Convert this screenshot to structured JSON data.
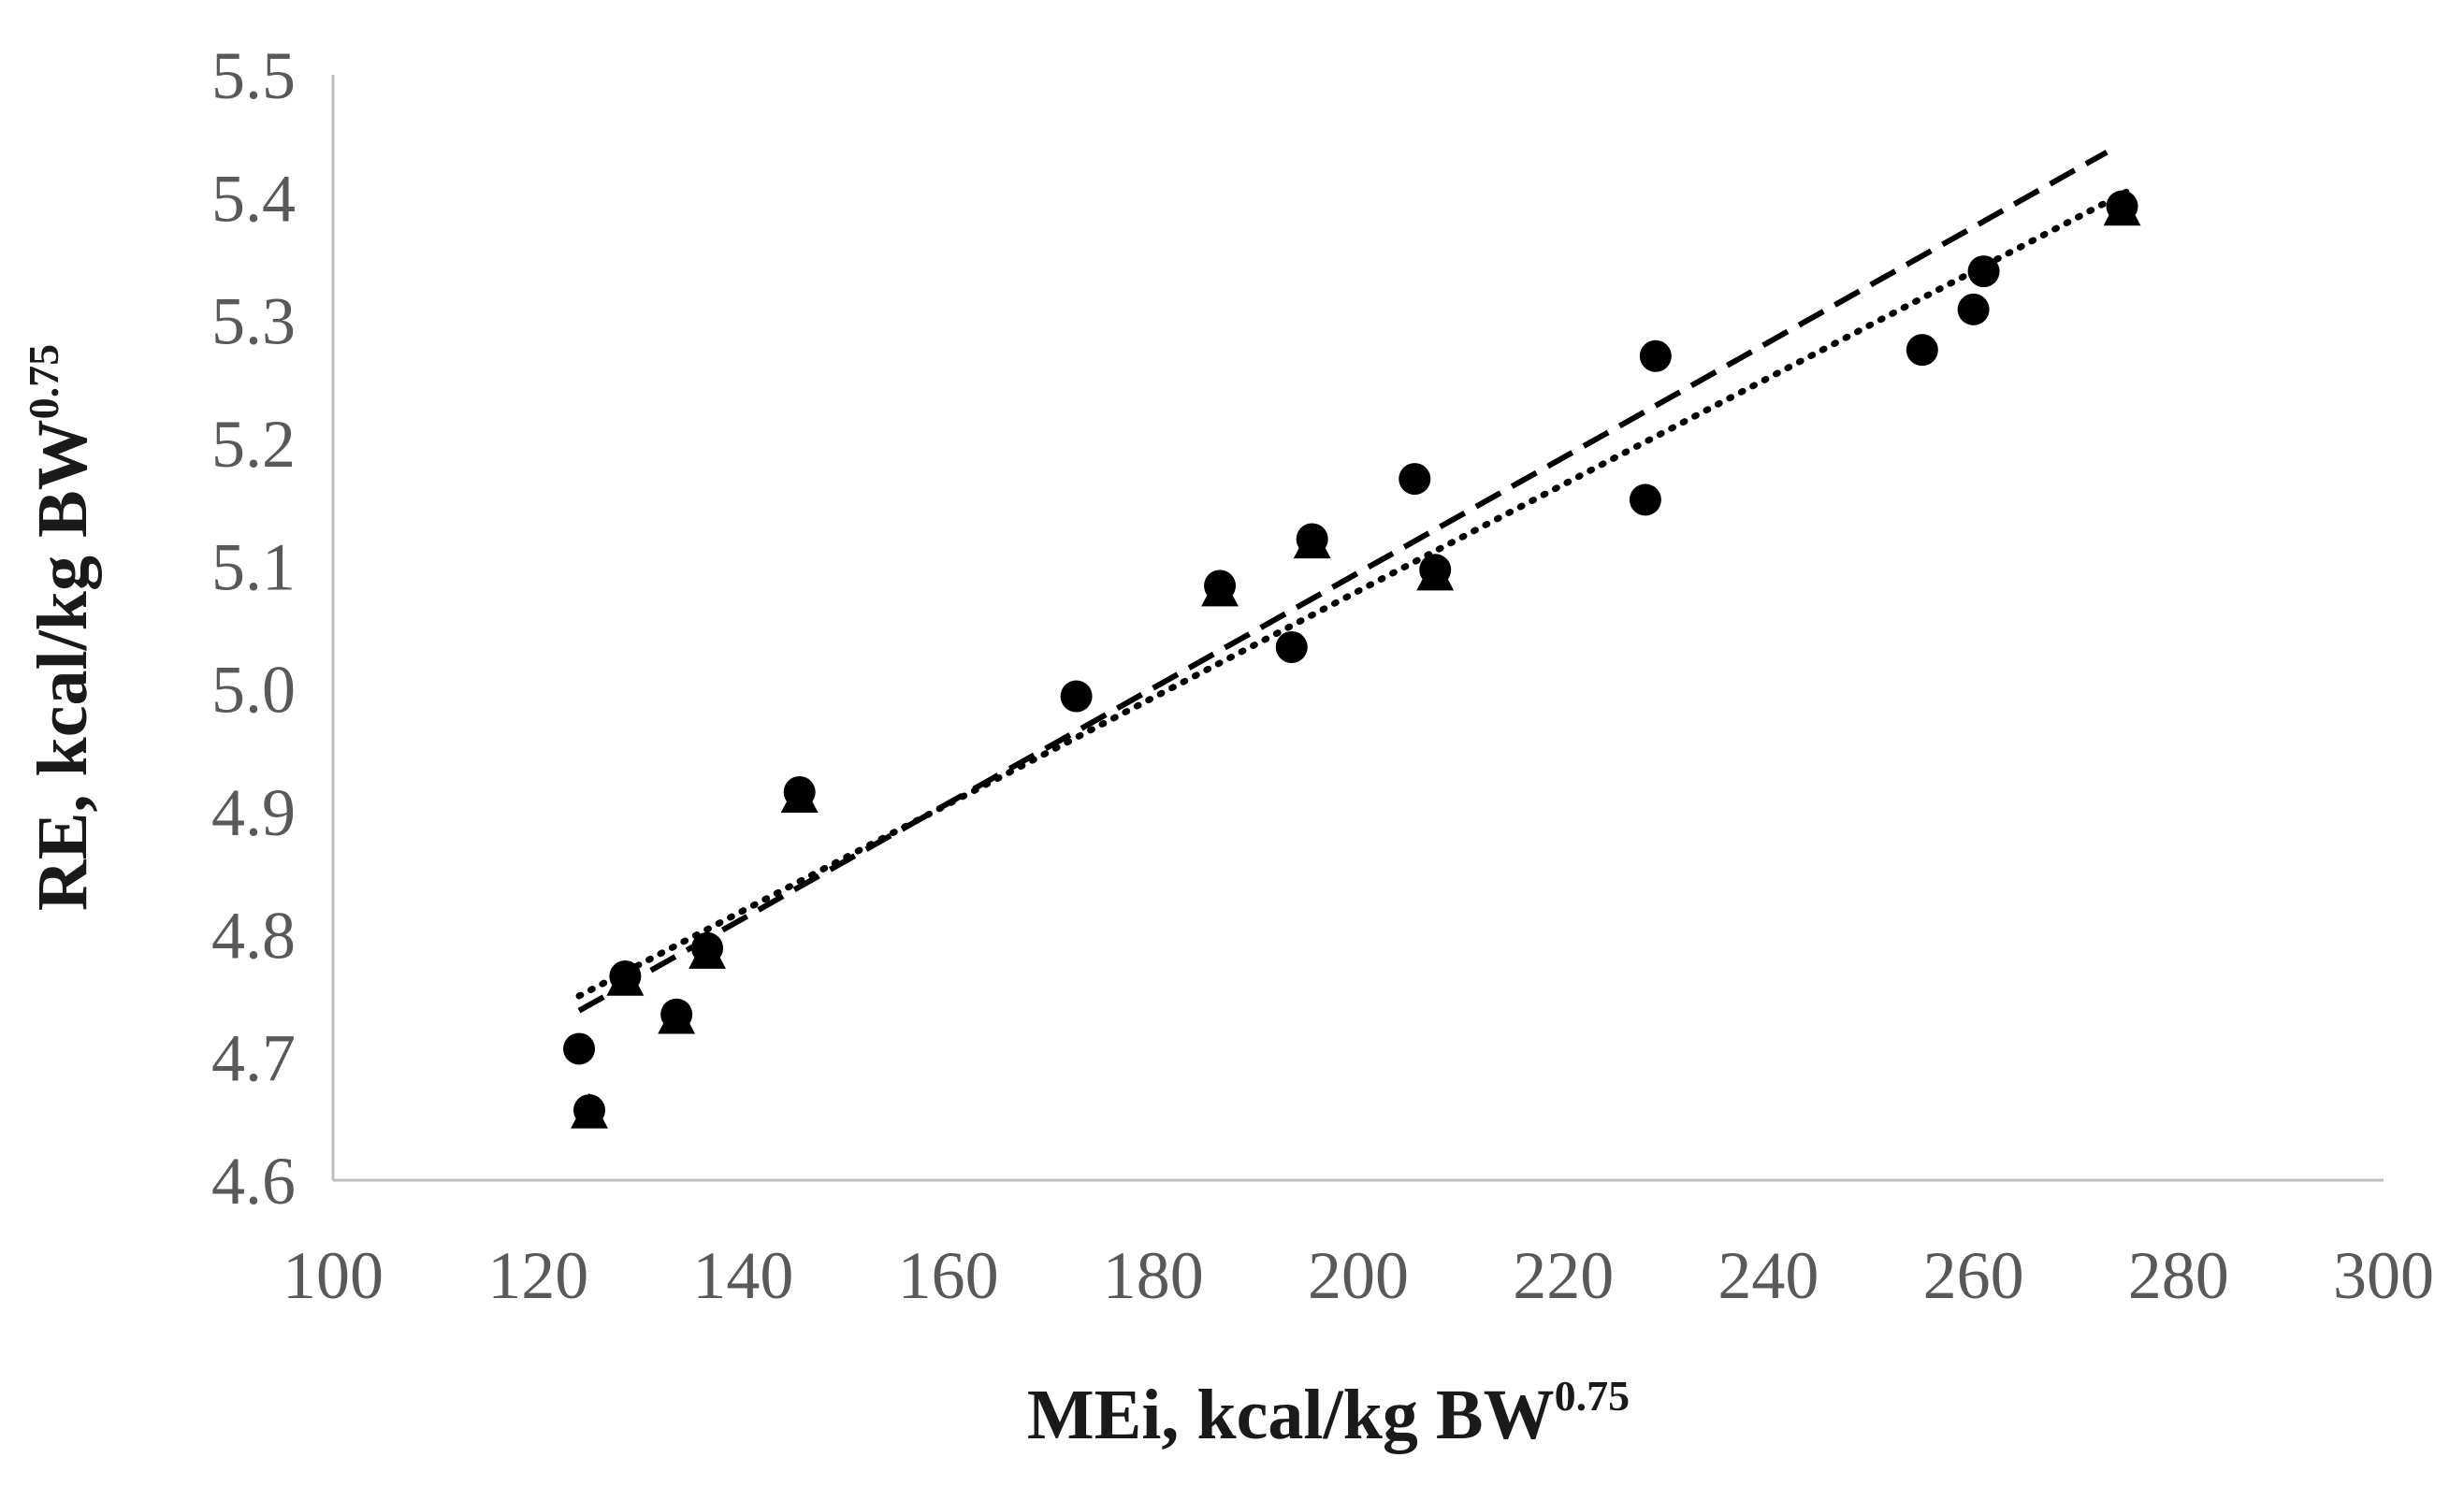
{
  "chart_data": {
    "type": "scatter",
    "title": "",
    "xlabel": {
      "text": "MEi, kcal/kg BW",
      "sup": "0.75"
    },
    "ylabel": {
      "text": "RE, kcal/kg BW",
      "sup": "0.75"
    },
    "xlim": [
      100,
      300
    ],
    "ylim": [
      4.6,
      5.5
    ],
    "x_ticks": [
      "100",
      "120",
      "140",
      "160",
      "180",
      "200",
      "220",
      "240",
      "260",
      "280",
      "300"
    ],
    "y_ticks": [
      "4.6",
      "4.7",
      "4.8",
      "4.9",
      "5.0",
      "5.1",
      "5.2",
      "5.3",
      "5.4",
      "5.5"
    ],
    "grid": false,
    "series": [
      {
        "marker": "triangle",
        "points": [
          {
            "x": 125,
            "y": 4.655
          },
          {
            "x": 128.5,
            "y": 4.763
          },
          {
            "x": 133.5,
            "y": 4.732
          },
          {
            "x": 136.5,
            "y": 4.785
          },
          {
            "x": 145.5,
            "y": 4.912
          },
          {
            "x": 186.5,
            "y": 5.08
          },
          {
            "x": 195.5,
            "y": 5.119
          },
          {
            "x": 207.5,
            "y": 5.093
          },
          {
            "x": 274.5,
            "y": 5.39
          }
        ]
      },
      {
        "marker": "circle",
        "points": [
          {
            "x": 124,
            "y": 4.707
          },
          {
            "x": 125,
            "y": 4.657
          },
          {
            "x": 128.5,
            "y": 4.766
          },
          {
            "x": 133.5,
            "y": 4.735
          },
          {
            "x": 136.5,
            "y": 4.789
          },
          {
            "x": 145.5,
            "y": 4.916
          },
          {
            "x": 172.5,
            "y": 4.994
          },
          {
            "x": 186.5,
            "y": 5.084
          },
          {
            "x": 193.5,
            "y": 5.034
          },
          {
            "x": 195.5,
            "y": 5.122
          },
          {
            "x": 205.5,
            "y": 5.171
          },
          {
            "x": 207.5,
            "y": 5.097
          },
          {
            "x": 228,
            "y": 5.154
          },
          {
            "x": 229,
            "y": 5.271
          },
          {
            "x": 255,
            "y": 5.276
          },
          {
            "x": 260,
            "y": 5.309
          },
          {
            "x": 261,
            "y": 5.34
          },
          {
            "x": 274.5,
            "y": 5.393
          }
        ]
      }
    ],
    "trendlines": [
      {
        "style": "dashed",
        "from": {
          "x": 124,
          "y": 4.738
        },
        "to": {
          "x": 273,
          "y": 5.437
        }
      },
      {
        "style": "dotted",
        "from": {
          "x": 124,
          "y": 4.75
        },
        "to": {
          "x": 275,
          "y": 5.405
        }
      }
    ],
    "colors": {
      "axis": "#bfbfbf",
      "tick_text": "#595959",
      "title_text": "#1a1a1a",
      "marker": "#000000",
      "trendline": "#000000"
    }
  }
}
